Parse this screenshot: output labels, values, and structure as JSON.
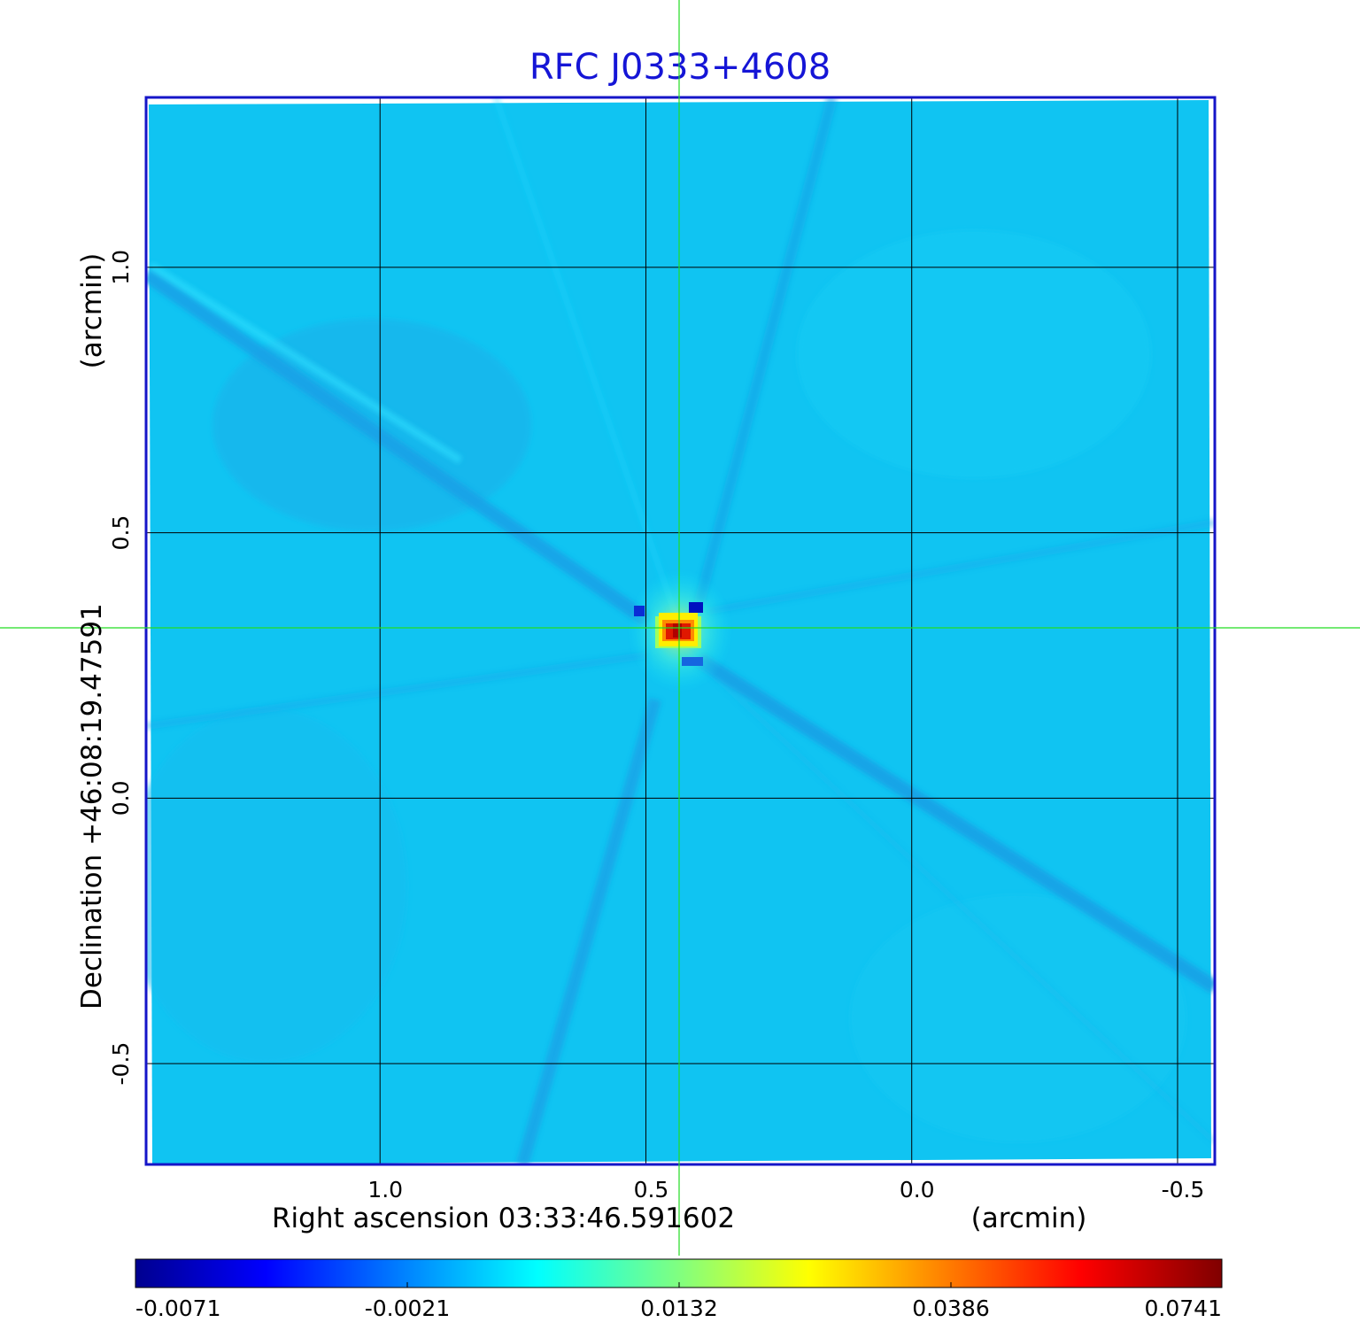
{
  "chart_data": {
    "type": "heatmap",
    "title": "RFC J0333+4608",
    "xlabel": "Right ascension  03:33:46.591602",
    "xlabel_unit": "(arcmin)",
    "ylabel": "Declination  +46:08:19.47591",
    "ylabel_unit": "(arcmin)",
    "x_ticks": [
      1.0,
      0.5,
      0.0,
      -0.5
    ],
    "x_tick_labels": [
      "1.0",
      "0.5",
      "0.0",
      "-0.5"
    ],
    "y_ticks": [
      1.0,
      0.5,
      0.0,
      -0.5
    ],
    "y_tick_labels": [
      "1.0",
      "0.5",
      "0.0",
      "-0.5"
    ],
    "xlim": [
      1.44,
      -0.57
    ],
    "ylim": [
      -0.69,
      1.32
    ],
    "grid": true,
    "crosshair": {
      "x": 0.436,
      "y": 0.325
    },
    "peak": {
      "x": 0.436,
      "y": 0.318,
      "value": 0.0741
    },
    "colormap": "jet",
    "colorbar": {
      "ticks": [
        -0.0071,
        -0.0021,
        0.0132,
        0.0386,
        0.0741
      ],
      "tick_labels": [
        "-0.0071",
        "-0.0021",
        "0.0132",
        "0.0386",
        "0.0741"
      ]
    },
    "colors": {
      "title": "#1515d6",
      "frame": "#1515c8",
      "crosshair": "#22dd22",
      "background_field": "#10c4f2"
    }
  }
}
